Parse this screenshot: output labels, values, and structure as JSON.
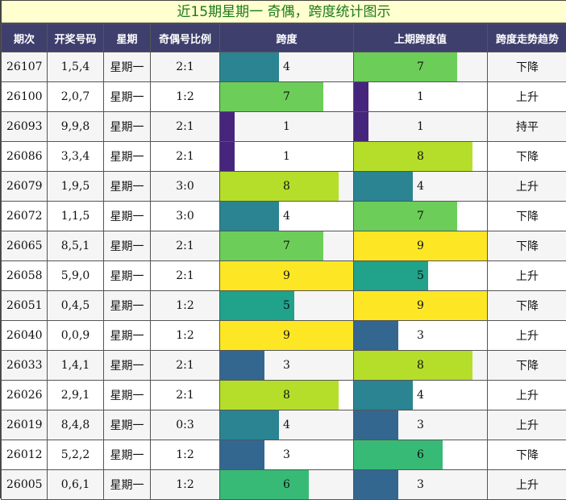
{
  "title": "近15期星期一 奇偶，跨度统计图示",
  "headers": [
    "期次",
    "开奖号码",
    "星期",
    "奇偶号比例",
    "跨度",
    "上期跨度值",
    "跨度走势趋势"
  ],
  "colors": {
    "1": "#46257c",
    "3": "#33678f",
    "4": "#2a8491",
    "5": "#21a28a",
    "6": "#38ba77",
    "7": "#6dcd59",
    "8": "#b5de2b",
    "9": "#fde725"
  },
  "chart_data": {
    "type": "table",
    "span_max": 9,
    "rows": [
      {
        "issue": "26107",
        "numbers": "1,5,4",
        "weekday": "星期一",
        "ratio": "2:1",
        "span": 4,
        "prev_span": 7,
        "trend": "下降"
      },
      {
        "issue": "26100",
        "numbers": "2,0,7",
        "weekday": "星期一",
        "ratio": "1:2",
        "span": 7,
        "prev_span": 1,
        "trend": "上升"
      },
      {
        "issue": "26093",
        "numbers": "9,9,8",
        "weekday": "星期一",
        "ratio": "2:1",
        "span": 1,
        "prev_span": 1,
        "trend": "持平"
      },
      {
        "issue": "26086",
        "numbers": "3,3,4",
        "weekday": "星期一",
        "ratio": "2:1",
        "span": 1,
        "prev_span": 8,
        "trend": "下降"
      },
      {
        "issue": "26079",
        "numbers": "1,9,5",
        "weekday": "星期一",
        "ratio": "3:0",
        "span": 8,
        "prev_span": 4,
        "trend": "上升"
      },
      {
        "issue": "26072",
        "numbers": "1,1,5",
        "weekday": "星期一",
        "ratio": "3:0",
        "span": 4,
        "prev_span": 7,
        "trend": "下降"
      },
      {
        "issue": "26065",
        "numbers": "8,5,1",
        "weekday": "星期一",
        "ratio": "2:1",
        "span": 7,
        "prev_span": 9,
        "trend": "下降"
      },
      {
        "issue": "26058",
        "numbers": "5,9,0",
        "weekday": "星期一",
        "ratio": "2:1",
        "span": 9,
        "prev_span": 5,
        "trend": "上升"
      },
      {
        "issue": "26051",
        "numbers": "0,4,5",
        "weekday": "星期一",
        "ratio": "1:2",
        "span": 5,
        "prev_span": 9,
        "trend": "下降"
      },
      {
        "issue": "26040",
        "numbers": "0,0,9",
        "weekday": "星期一",
        "ratio": "1:2",
        "span": 9,
        "prev_span": 3,
        "trend": "上升"
      },
      {
        "issue": "26033",
        "numbers": "1,4,1",
        "weekday": "星期一",
        "ratio": "2:1",
        "span": 3,
        "prev_span": 8,
        "trend": "下降"
      },
      {
        "issue": "26026",
        "numbers": "2,9,1",
        "weekday": "星期一",
        "ratio": "2:1",
        "span": 8,
        "prev_span": 4,
        "trend": "上升"
      },
      {
        "issue": "26019",
        "numbers": "8,4,8",
        "weekday": "星期一",
        "ratio": "0:3",
        "span": 4,
        "prev_span": 3,
        "trend": "上升"
      },
      {
        "issue": "26012",
        "numbers": "5,2,2",
        "weekday": "星期一",
        "ratio": "1:2",
        "span": 3,
        "prev_span": 6,
        "trend": "下降"
      },
      {
        "issue": "26005",
        "numbers": "0,6,1",
        "weekday": "星期一",
        "ratio": "1:2",
        "span": 6,
        "prev_span": 3,
        "trend": "上升"
      }
    ]
  }
}
